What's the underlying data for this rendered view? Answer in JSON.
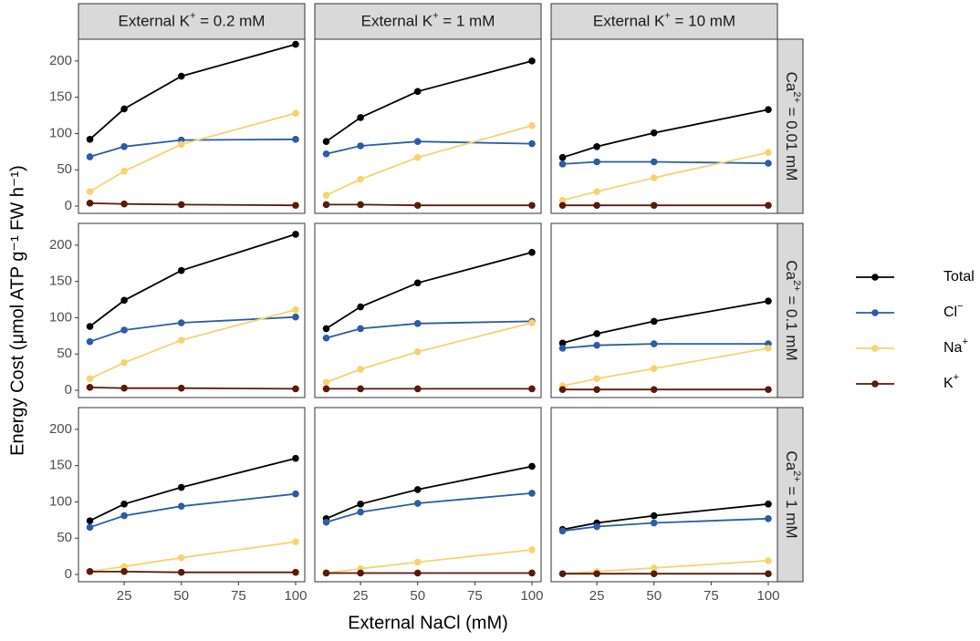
{
  "chart_data": {
    "type": "line",
    "subtype": "faceted-grid",
    "x": [
      10,
      25,
      50,
      100
    ],
    "xlabel": "External NaCl (mM)",
    "ylabel": "Energy Cost  (μmol ATP g⁻¹ FW h⁻¹)",
    "xlim": [
      5,
      104
    ],
    "ylim": [
      -10,
      230
    ],
    "x_ticks": [
      25,
      50,
      75,
      100
    ],
    "y_ticks": [
      0,
      50,
      100,
      150,
      200
    ],
    "legend_position": "right",
    "grid": false,
    "column_facets": [
      {
        "label_pre": "External K",
        "label_sup": "+",
        "label_post": " = 0.2 mM"
      },
      {
        "label_pre": "External K",
        "label_sup": "+",
        "label_post": " = 1 mM"
      },
      {
        "label_pre": "External K",
        "label_sup": "+",
        "label_post": " = 10 mM"
      }
    ],
    "row_facets": [
      {
        "label_pre": "Ca",
        "label_sup": "2+",
        "label_post": " = 0.01 mM"
      },
      {
        "label_pre": "Ca",
        "label_sup": "2+",
        "label_post": " = 0.1 mM"
      },
      {
        "label_pre": "Ca",
        "label_sup": "2+",
        "label_post": " = 1 mM"
      }
    ],
    "series": [
      {
        "key": "total",
        "name": "Total",
        "sup": "",
        "color": "#000000"
      },
      {
        "key": "cl",
        "name": "Cl",
        "sup": "−",
        "color": "#2b5ca6"
      },
      {
        "key": "na",
        "name": "Na",
        "sup": "+",
        "color": "#f7d36f"
      },
      {
        "key": "k",
        "name": "K",
        "sup": "+",
        "color": "#5a1a0a"
      }
    ],
    "panels": [
      [
        {
          "total": [
            92,
            134,
            179,
            223
          ],
          "cl": [
            68,
            82,
            91,
            92
          ],
          "na": [
            20,
            48,
            85,
            128
          ],
          "k": [
            4,
            3,
            2,
            1
          ]
        },
        {
          "total": [
            89,
            122,
            158,
            200
          ],
          "cl": [
            72,
            83,
            89,
            86
          ],
          "na": [
            15,
            37,
            67,
            111
          ],
          "k": [
            2,
            2,
            1,
            1
          ]
        },
        {
          "total": [
            67,
            82,
            101,
            133
          ],
          "cl": [
            58,
            61,
            61,
            59
          ],
          "na": [
            8,
            20,
            39,
            74
          ],
          "k": [
            1,
            1,
            1,
            1
          ]
        }
      ],
      [
        {
          "total": [
            88,
            124,
            165,
            215
          ],
          "cl": [
            67,
            83,
            93,
            101
          ],
          "na": [
            16,
            38,
            69,
            111
          ],
          "k": [
            4,
            3,
            3,
            2
          ]
        },
        {
          "total": [
            85,
            115,
            148,
            190
          ],
          "cl": [
            72,
            85,
            92,
            95
          ],
          "na": [
            11,
            29,
            53,
            93
          ],
          "k": [
            2,
            2,
            2,
            2
          ]
        },
        {
          "total": [
            65,
            78,
            95,
            123
          ],
          "cl": [
            58,
            62,
            64,
            64
          ],
          "na": [
            6,
            16,
            30,
            58
          ],
          "k": [
            1,
            1,
            1,
            1
          ]
        }
      ],
      [
        {
          "total": [
            74,
            97,
            120,
            160
          ],
          "cl": [
            65,
            81,
            94,
            111
          ],
          "na": [
            4,
            11,
            23,
            45
          ],
          "k": [
            4,
            4,
            3,
            3
          ]
        },
        {
          "total": [
            77,
            97,
            117,
            149
          ],
          "cl": [
            72,
            86,
            98,
            112
          ],
          "na": [
            2,
            8,
            17,
            34
          ],
          "k": [
            2,
            2,
            2,
            2
          ]
        },
        {
          "total": [
            62,
            71,
            81,
            97
          ],
          "cl": [
            60,
            66,
            71,
            77
          ],
          "na": [
            1,
            4,
            9,
            19
          ],
          "k": [
            1,
            1,
            1,
            1
          ]
        }
      ]
    ]
  }
}
